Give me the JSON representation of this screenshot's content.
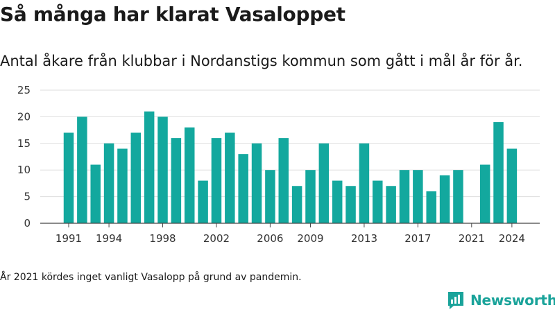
{
  "title": "Så många har klarat Vasaloppet",
  "subtitle": "Antal åkare från klubbar i Nordanstigs kommun som gått i mål år för år.",
  "footnote": "År 2021 kördes inget vanligt Vasalopp på grund av pandemin.",
  "brand": {
    "name": "Newsworthy",
    "icon": "newsworthy-logo-icon",
    "color": "#1aa39a"
  },
  "chart_data": {
    "type": "bar",
    "bar_color": "#13a89e",
    "x": [
      1991,
      1992,
      1993,
      1994,
      1995,
      1996,
      1997,
      1998,
      1999,
      2000,
      2001,
      2002,
      2003,
      2004,
      2005,
      2006,
      2007,
      2008,
      2009,
      2010,
      2011,
      2012,
      2013,
      2014,
      2015,
      2016,
      2017,
      2018,
      2019,
      2020,
      2021,
      2022,
      2023,
      2024
    ],
    "values": [
      17,
      20,
      11,
      15,
      14,
      17,
      21,
      20,
      16,
      18,
      8,
      16,
      17,
      13,
      15,
      10,
      16,
      7,
      10,
      15,
      8,
      7,
      15,
      8,
      7,
      10,
      10,
      6,
      9,
      10,
      0,
      11,
      19,
      14
    ],
    "ylim": [
      0,
      25
    ],
    "yticks": [
      0,
      5,
      10,
      15,
      20,
      25
    ],
    "xtick_labels": [
      "1991",
      "1994",
      "1998",
      "2002",
      "2006",
      "2009",
      "2013",
      "2017",
      "2021",
      "2024"
    ],
    "grid": true
  }
}
